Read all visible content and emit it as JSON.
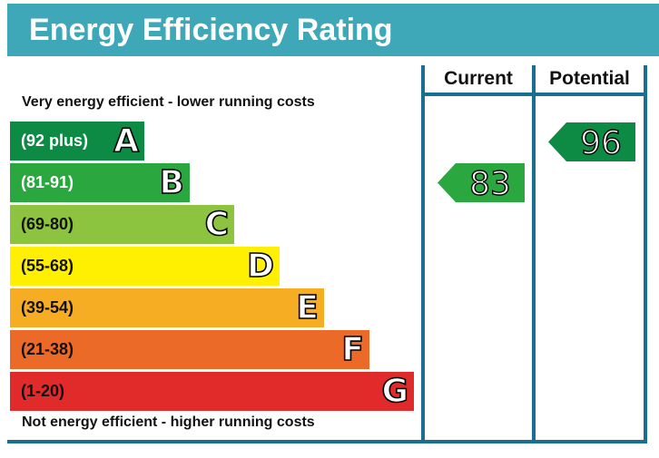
{
  "title": "Energy Efficiency Rating",
  "top_caption": "Very energy efficient - lower running costs",
  "bottom_caption": "Not energy efficient - higher running costs",
  "columns": {
    "current": "Current",
    "potential": "Potential"
  },
  "colors": {
    "header": "#3fa8b8",
    "frame": "#1a6e92",
    "band_A": "#0d8a44",
    "band_B": "#2aa83f",
    "band_C": "#8cc33f",
    "band_D": "#ffef00",
    "band_E": "#f6ad24",
    "band_F": "#ec6a27",
    "band_G": "#e12a2a"
  },
  "chart_data": {
    "type": "bar",
    "title": "Energy Efficiency Rating",
    "categories": [
      "A",
      "B",
      "C",
      "D",
      "E",
      "F",
      "G"
    ],
    "bands": [
      {
        "letter": "A",
        "range": "(92 plus)",
        "min": 92,
        "max": 100,
        "color": "#0d8a44",
        "text_color": "#ffffff"
      },
      {
        "letter": "B",
        "range": "(81-91)",
        "min": 81,
        "max": 91,
        "color": "#2aa83f",
        "text_color": "#ffffff"
      },
      {
        "letter": "C",
        "range": "(69-80)",
        "min": 69,
        "max": 80,
        "color": "#8cc33f",
        "text_color": "#111111"
      },
      {
        "letter": "D",
        "range": "(55-68)",
        "min": 55,
        "max": 68,
        "color": "#ffef00",
        "text_color": "#111111"
      },
      {
        "letter": "E",
        "range": "(39-54)",
        "min": 39,
        "max": 54,
        "color": "#f6ad24",
        "text_color": "#111111"
      },
      {
        "letter": "F",
        "range": "(21-38)",
        "min": 21,
        "max": 38,
        "color": "#ec6a27",
        "text_color": "#111111"
      },
      {
        "letter": "G",
        "range": "(1-20)",
        "min": 1,
        "max": 20,
        "color": "#e12a2a",
        "text_color": "#111111"
      }
    ],
    "ratings": [
      {
        "name": "Current",
        "value": 83,
        "band": "B",
        "color": "#2aa83f"
      },
      {
        "name": "Potential",
        "value": 96,
        "band": "A",
        "color": "#0d8a44"
      }
    ]
  }
}
